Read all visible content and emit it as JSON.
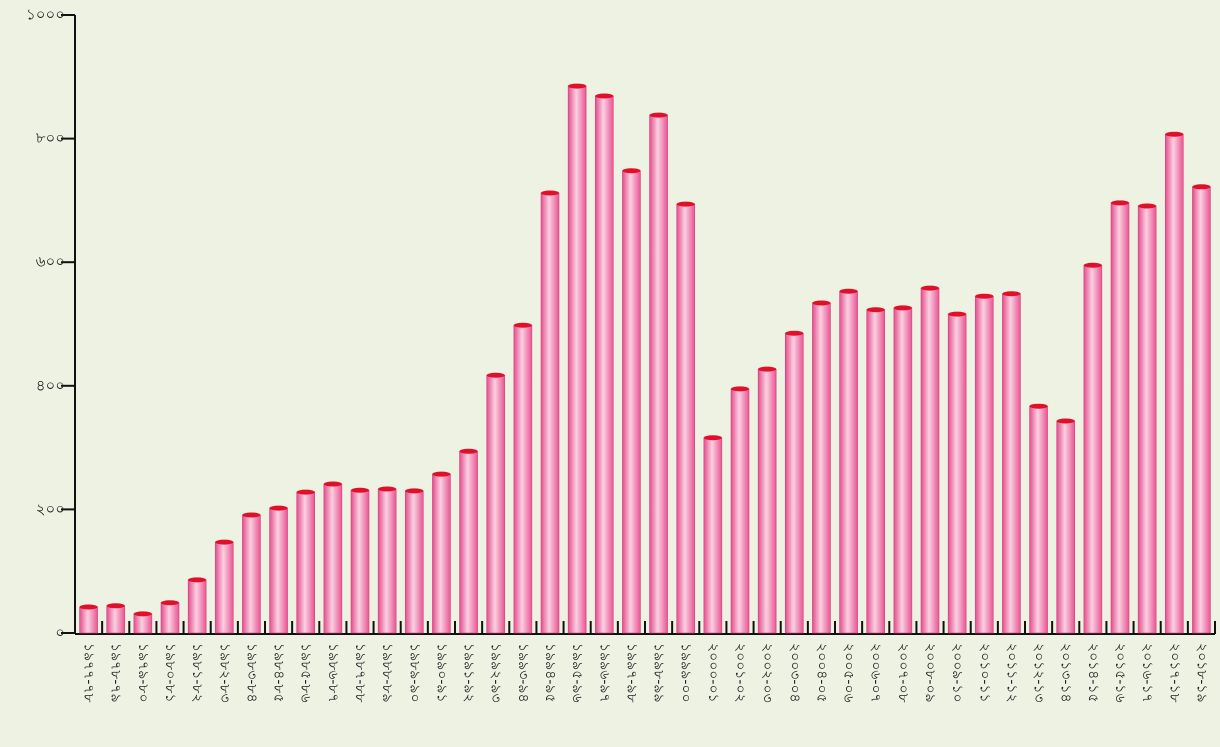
{
  "chart_data": {
    "type": "bar",
    "categories": [
      "১৯৭৭-৭৮",
      "১৯৭৮-৭৯",
      "১৯৭৯-৮০",
      "১৯৮০-৮১",
      "১৯৮১-৮২",
      "১৯৮২-৮৩",
      "১৯৮৩-৮৪",
      "১৯৮৪-৮৫",
      "১৯৮৫-৮৬",
      "১৯৮৬-৮৭",
      "১৯৮৭-৮৮",
      "১৯৮৮-৮৯",
      "১৯৮৯-৯০",
      "১৯৯০-৯১",
      "১৯৯১-৯২",
      "১৯৯২-৯৩",
      "১৯৯৩-৯৪",
      "১৯৯৪-৯৫",
      "১৯৯৫-৯৬",
      "১৯৯৬-৯৭",
      "১৯৯৭-৯৮",
      "১৯৯৮-৯৯",
      "১৯৯৯-০০",
      "২০০০-০১",
      "২০০১-০২",
      "২০০২-০৩",
      "২০০৩-০৪",
      "২০০৪-০৫",
      "২০০৫-০৬",
      "২০০৬-০৭",
      "২০০৭-০৮",
      "২০০৮-০৯",
      "২০০৯-১০",
      "২০১০-১১",
      "২০১১-১২",
      "২০১২-১৩",
      "২০১৩-১৪",
      "২০১৪-১৫",
      "২০১৫-১৬",
      "২০১৬-১৭",
      "২০১৭-১৮",
      "২০১৮-১৯"
    ],
    "values": [
      42,
      44,
      31,
      49,
      86,
      147,
      191,
      202,
      228,
      241,
      231,
      233,
      230,
      257,
      294,
      417,
      498,
      712,
      885,
      869,
      748,
      838,
      694,
      316,
      395,
      427,
      485,
      534,
      553,
      523,
      526,
      558,
      516,
      545,
      549,
      367,
      343,
      595,
      696,
      691,
      807,
      722
    ],
    "color": "#f06aa0",
    "ylim": [
      0,
      1000
    ],
    "yticks": [
      {
        "value": 0,
        "label": "০"
      },
      {
        "value": 200,
        "label": "২০০"
      },
      {
        "value": 400,
        "label": "৪০০"
      },
      {
        "value": 600,
        "label": "৬০০"
      },
      {
        "value": 800,
        "label": "৮০০"
      },
      {
        "value": 1000,
        "label": "১০০০"
      }
    ],
    "grid": false
  }
}
